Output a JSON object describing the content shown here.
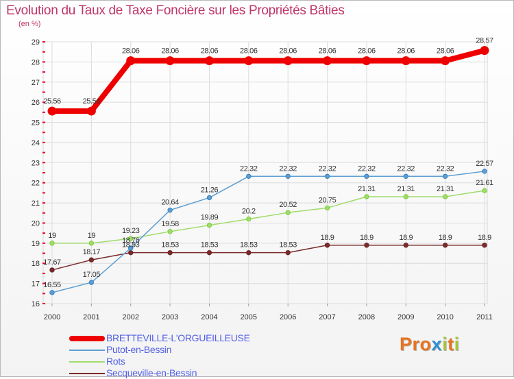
{
  "header": {
    "title": "Evolution du Taux de Taxe Foncière sur les Propriétés Bâties",
    "unit": "(en %)"
  },
  "brand": {
    "letters": [
      "P",
      "r",
      "o",
      "x",
      "i",
      "t",
      "i"
    ]
  },
  "colors": {
    "title": "#c03568",
    "legend_text": "#5360e6",
    "brand_letters": [
      "#e8731f",
      "#e8731f",
      "#e8731f",
      "#2f8fd1",
      "#a6c638",
      "#e8731f",
      "#a6c638"
    ],
    "axis_ticks": "#e8002a"
  },
  "chart_data": {
    "type": "line",
    "title": "Evolution du Taux de Taxe Foncière sur les Propriétés Bâties",
    "ylabel": "(en %)",
    "xlabel": "",
    "ylim": [
      16,
      29
    ],
    "yticks": [
      16,
      17,
      18,
      19,
      20,
      21,
      22,
      23,
      24,
      25,
      26,
      27,
      28,
      29
    ],
    "grid": true,
    "legend_position": "bottom-left",
    "x": [
      "2000",
      "2001",
      "2002",
      "2003",
      "2004",
      "2005",
      "2006",
      "2007",
      "2008",
      "2009",
      "2010",
      "2011"
    ],
    "series": [
      {
        "name": "BRETTEVILLE-L'ORGUEILLEUSE",
        "color": "#ee0000",
        "emphasis": "thick",
        "values": [
          25.56,
          25.56,
          28.06,
          28.06,
          28.06,
          28.06,
          28.06,
          28.06,
          28.06,
          28.06,
          28.06,
          28.57
        ],
        "labels": [
          "25.56",
          "25.56",
          "28.06",
          "28.06",
          "28.06",
          "28.06",
          "28.06",
          "28.06",
          "28.06",
          "28.06",
          "28.06",
          "28.57"
        ]
      },
      {
        "name": "Putot-en-Bessin",
        "color": "#5d9fd3",
        "marker_color": "#3a80bd",
        "values": [
          16.55,
          17.05,
          18.76,
          20.64,
          21.26,
          22.32,
          22.32,
          22.32,
          22.32,
          22.32,
          22.32,
          22.57
        ],
        "labels": [
          "16.55",
          "17.05",
          "18.76",
          "20.64",
          "21.26",
          "22.32",
          "22.32",
          "22.32",
          "22.32",
          "22.32",
          "22.32",
          "22.57"
        ]
      },
      {
        "name": "Rots",
        "color": "#9fdc6c",
        "marker_color": "#7fcd3c",
        "values": [
          19,
          19,
          19.23,
          19.58,
          19.89,
          20.2,
          20.52,
          20.75,
          21.31,
          21.31,
          21.31,
          21.61
        ],
        "labels": [
          "19",
          "19",
          "19.23",
          "19.58",
          "19.89",
          "20.2",
          "20.52",
          "20.75",
          "21.31",
          "21.31",
          "21.31",
          "21.61"
        ]
      },
      {
        "name": "Secqueville-en-Bessin",
        "color": "#7b2b2b",
        "marker_color": "#6a2222",
        "values": [
          17.67,
          18.17,
          18.53,
          18.53,
          18.53,
          18.53,
          18.53,
          18.9,
          18.9,
          18.9,
          18.9,
          18.9
        ],
        "labels": [
          "17.67",
          "18.17",
          "18.53",
          "18.53",
          "18.53",
          "18.53",
          "18.53",
          "18.9",
          "18.9",
          "18.9",
          "18.9",
          "18.9"
        ]
      }
    ]
  }
}
